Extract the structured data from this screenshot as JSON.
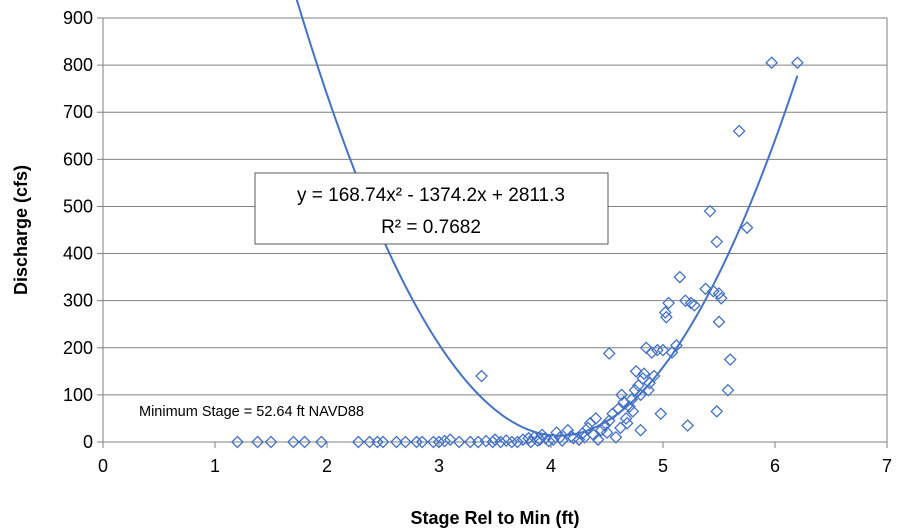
{
  "chart_data": {
    "type": "scatter",
    "xlabel": "Stage Rel to Min (ft)",
    "ylabel": "Discharge (cfs)",
    "xlim": [
      0,
      7
    ],
    "ylim": [
      0,
      900
    ],
    "x_ticks": [
      "0",
      "1",
      "2",
      "3",
      "4",
      "5",
      "6",
      "7"
    ],
    "y_ticks": [
      "0",
      "100",
      "200",
      "300",
      "400",
      "500",
      "600",
      "700",
      "800",
      "900"
    ],
    "grid": "horizontal",
    "marker": "diamond",
    "marker_color": "#4472C4",
    "trend_color": "#4472C4",
    "trendline": {
      "type": "polynomial",
      "order": 2,
      "coefficients": [
        168.74,
        -1374.2,
        2811.3
      ],
      "x_range": [
        1.2,
        6.2
      ]
    },
    "equation_text": "y = 168.74x² - 1374.2x + 2811.3",
    "r2_text": "R² = 0.7682",
    "annotation": "Minimum Stage =  52.64 ft NAVD88",
    "points": [
      [
        1.2,
        0
      ],
      [
        1.38,
        0
      ],
      [
        1.5,
        0
      ],
      [
        1.7,
        0
      ],
      [
        1.8,
        0
      ],
      [
        1.95,
        0
      ],
      [
        2.28,
        0
      ],
      [
        2.38,
        0
      ],
      [
        2.45,
        0
      ],
      [
        2.5,
        0
      ],
      [
        2.62,
        0
      ],
      [
        2.7,
        0
      ],
      [
        2.8,
        0
      ],
      [
        2.85,
        0
      ],
      [
        2.95,
        0
      ],
      [
        3.0,
        0
      ],
      [
        3.05,
        2
      ],
      [
        3.1,
        5
      ],
      [
        3.18,
        0
      ],
      [
        3.28,
        0
      ],
      [
        3.35,
        0
      ],
      [
        3.42,
        2
      ],
      [
        3.48,
        0
      ],
      [
        3.5,
        5
      ],
      [
        3.55,
        0
      ],
      [
        3.6,
        3
      ],
      [
        3.65,
        0
      ],
      [
        3.7,
        0
      ],
      [
        3.75,
        5
      ],
      [
        3.8,
        8
      ],
      [
        3.82,
        0
      ],
      [
        3.85,
        10
      ],
      [
        3.88,
        3
      ],
      [
        3.9,
        5
      ],
      [
        3.92,
        15
      ],
      [
        3.95,
        8
      ],
      [
        3.98,
        2
      ],
      [
        4.02,
        5
      ],
      [
        4.05,
        20
      ],
      [
        4.08,
        10
      ],
      [
        4.1,
        3
      ],
      [
        4.15,
        25
      ],
      [
        4.18,
        12
      ],
      [
        4.2,
        8
      ],
      [
        4.25,
        5
      ],
      [
        4.28,
        18
      ],
      [
        4.3,
        10
      ],
      [
        4.33,
        30
      ],
      [
        4.35,
        40
      ],
      [
        4.38,
        15
      ],
      [
        4.4,
        50
      ],
      [
        4.42,
        5
      ],
      [
        4.45,
        25
      ],
      [
        4.48,
        35
      ],
      [
        4.5,
        20
      ],
      [
        4.52,
        45
      ],
      [
        4.55,
        60
      ],
      [
        4.58,
        10
      ],
      [
        4.6,
        70
      ],
      [
        4.62,
        30
      ],
      [
        4.63,
        100
      ],
      [
        4.65,
        85
      ],
      [
        4.67,
        50
      ],
      [
        4.68,
        40
      ],
      [
        4.7,
        75
      ],
      [
        4.72,
        90
      ],
      [
        4.73,
        65
      ],
      [
        4.75,
        110
      ],
      [
        4.76,
        150
      ],
      [
        4.78,
        120
      ],
      [
        4.8,
        100
      ],
      [
        4.8,
        25
      ],
      [
        4.82,
        135
      ],
      [
        4.83,
        145
      ],
      [
        4.85,
        200
      ],
      [
        4.87,
        110
      ],
      [
        4.88,
        125
      ],
      [
        4.9,
        190
      ],
      [
        4.92,
        140
      ],
      [
        4.95,
        195
      ],
      [
        4.98,
        60
      ],
      [
        5.0,
        195
      ],
      [
        5.02,
        275
      ],
      [
        5.03,
        265
      ],
      [
        5.05,
        295
      ],
      [
        5.08,
        190
      ],
      [
        5.12,
        205
      ],
      [
        5.15,
        350
      ],
      [
        5.2,
        300
      ],
      [
        5.22,
        35
      ],
      [
        5.25,
        295
      ],
      [
        5.28,
        290
      ],
      [
        5.38,
        325
      ],
      [
        5.42,
        490
      ],
      [
        5.45,
        320
      ],
      [
        5.48,
        425
      ],
      [
        5.48,
        65
      ],
      [
        5.5,
        315
      ],
      [
        5.5,
        255
      ],
      [
        5.52,
        305
      ],
      [
        5.58,
        110
      ],
      [
        5.6,
        175
      ],
      [
        5.68,
        660
      ],
      [
        5.75,
        455
      ],
      [
        5.97,
        805
      ],
      [
        6.2,
        805
      ],
      [
        3.38,
        140
      ],
      [
        4.52,
        188
      ]
    ]
  }
}
